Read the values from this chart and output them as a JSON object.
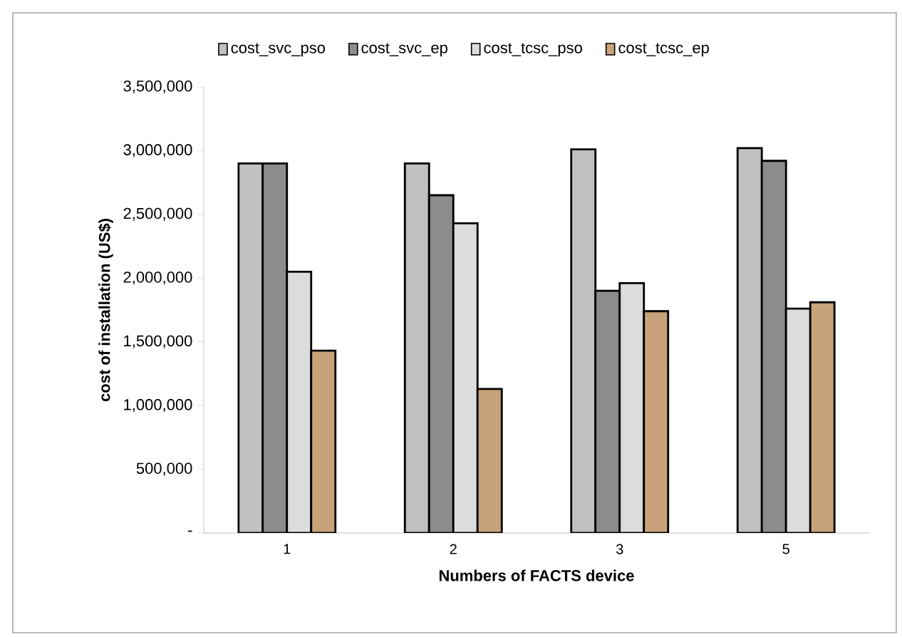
{
  "chart_data": {
    "type": "bar",
    "xlabel": "Numbers of FACTS device",
    "ylabel": "cost of installation (US$)",
    "categories": [
      "1",
      "2",
      "3",
      "5"
    ],
    "series": [
      {
        "name": "cost_svc_pso",
        "color": "#c0c0c0",
        "values": [
          2900000,
          2900000,
          3010000,
          3020000
        ]
      },
      {
        "name": "cost_svc_ep",
        "color": "#8c8c8c",
        "values": [
          2900000,
          2650000,
          1900000,
          2920000
        ]
      },
      {
        "name": "cost_tcsc_pso",
        "color": "#dcdcdc",
        "values": [
          2050000,
          2430000,
          1960000,
          1760000
        ]
      },
      {
        "name": "cost_tcsc_ep",
        "color": "#c8a27a",
        "values": [
          1430000,
          1130000,
          1740000,
          1810000
        ]
      }
    ],
    "ylim": [
      0,
      3500000
    ],
    "yticks": [
      {
        "value": 0,
        "label": "-"
      },
      {
        "value": 500000,
        "label": "500,000"
      },
      {
        "value": 1000000,
        "label": "1,000,000"
      },
      {
        "value": 1500000,
        "label": "1,500,000"
      },
      {
        "value": 2000000,
        "label": "2,000,000"
      },
      {
        "value": 2500000,
        "label": "2,500,000"
      },
      {
        "value": 3000000,
        "label": "3,000,000"
      },
      {
        "value": 3500000,
        "label": "3,500,000"
      }
    ],
    "legend": "top"
  }
}
